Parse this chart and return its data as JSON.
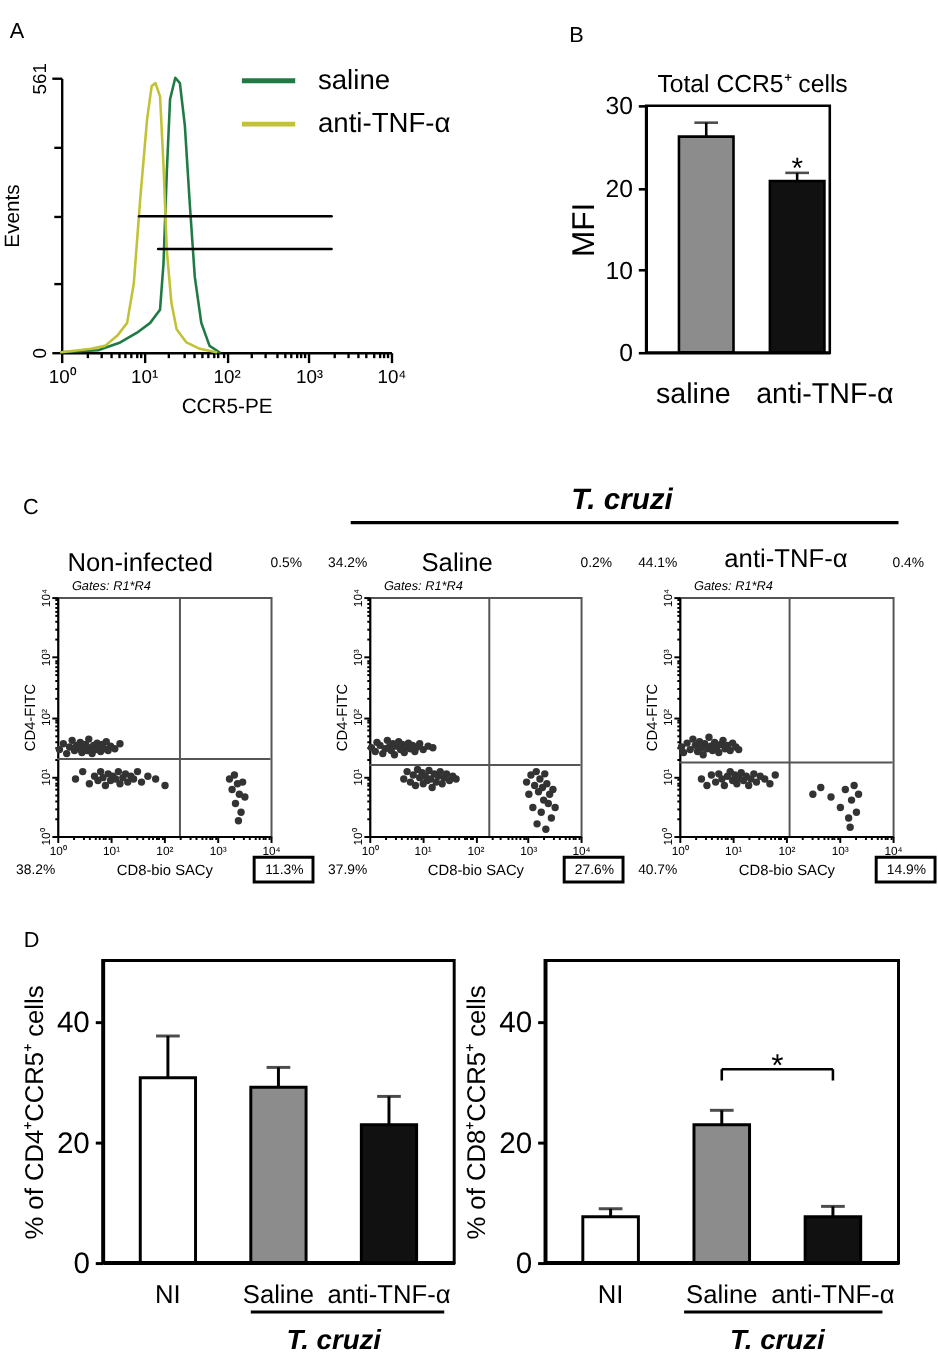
{
  "chart_data": [
    {
      "type": "line",
      "annotations": [
        "A"
      ],
      "xlabel": "CCR5-PE",
      "ylabel": "Events",
      "log": "x",
      "xlim": [
        1,
        10000
      ],
      "ylim": [
        0,
        561
      ],
      "xticks": [
        {
          "value": 1,
          "label": "10⁰"
        },
        {
          "value": 2,
          "label": null
        },
        {
          "value": 3,
          "label": null
        },
        {
          "value": 4,
          "label": null
        },
        {
          "value": 5,
          "label": null
        },
        {
          "value": 6,
          "label": null
        },
        {
          "value": 7,
          "label": null
        },
        {
          "value": 8,
          "label": null
        },
        {
          "value": 9,
          "label": null
        },
        {
          "value": 10,
          "label": "10¹"
        },
        {
          "value": 20,
          "label": null
        },
        {
          "value": 30,
          "label": null
        },
        {
          "value": 40,
          "label": null
        },
        {
          "value": 50,
          "label": null
        },
        {
          "value": 60,
          "label": null
        },
        {
          "value": 70,
          "label": null
        },
        {
          "value": 80,
          "label": null
        },
        {
          "value": 90,
          "label": null
        },
        {
          "value": 100,
          "label": "10²"
        },
        {
          "value": 200,
          "label": null
        },
        {
          "value": 300,
          "label": null
        },
        {
          "value": 400,
          "label": null
        },
        {
          "value": 500,
          "label": null
        },
        {
          "value": 600,
          "label": null
        },
        {
          "value": 700,
          "label": null
        },
        {
          "value": 800,
          "label": null
        },
        {
          "value": 900,
          "label": null
        },
        {
          "value": 1000,
          "label": "10³"
        },
        {
          "value": 2000,
          "label": null
        },
        {
          "value": 3000,
          "label": null
        },
        {
          "value": 4000,
          "label": null
        },
        {
          "value": 5000,
          "label": null
        },
        {
          "value": 6000,
          "label": null
        },
        {
          "value": 7000,
          "label": null
        },
        {
          "value": 8000,
          "label": null
        },
        {
          "value": 9000,
          "label": null
        },
        {
          "value": 10000,
          "label": "10⁴"
        }
      ],
      "yticks": [
        0,
        {
          "value": 140,
          "label": null
        },
        {
          "value": 280,
          "label": null
        },
        {
          "value": 420,
          "label": null
        },
        561
      ],
      "legend": "top right",
      "series": [
        {
          "name": "saline",
          "color": "#1f7a44",
          "x": [
            1,
            2.8,
            5.2,
            8.3,
            12,
            15.8,
            17.4,
            19.1,
            20.9,
            24.2,
            27.5,
            31.6,
            36.3,
            41.7,
            50,
            63,
            83
          ],
          "values": [
            0,
            4,
            20,
            40,
            60,
            87,
            181,
            369,
            517,
            561,
            550,
            463,
            302,
            154,
            60,
            13,
            0
          ]
        },
        {
          "name": "anti-TNF-α",
          "color": "#c2c236",
          "x": [
            1,
            2.3,
            3.4,
            4.8,
            6.3,
            7.6,
            9.1,
            11,
            12.5,
            13.9,
            15.8,
            17.4,
            19.1,
            21.7,
            25.1,
            33,
            48,
            76
          ],
          "values": [
            0,
            7,
            13,
            34,
            60,
            141,
            315,
            476,
            544,
            550,
            523,
            382,
            208,
            101,
            47,
            20,
            7,
            0
          ]
        },
        {
          "color": "#000000",
          "x": [
            8.8,
            1900
          ],
          "values": [
            278,
            278
          ]
        },
        {
          "color": "#000000",
          "x": [
            15,
            1900
          ],
          "values": [
            211,
            211
          ]
        }
      ]
    },
    {
      "type": "bar",
      "title": "Total CCR5⁺ cells",
      "annotations": [
        "B",
        "*"
      ],
      "ylabel": "MFI",
      "categories": [
        "saline",
        "anti-TNF-α"
      ],
      "values": [
        26.2,
        20.8
      ],
      "colors": [
        "#8c8c8c",
        "#111111"
      ],
      "errors": [
        [
          26.2,
          27.9
        ],
        [
          20.8,
          21.8
        ]
      ],
      "ylim": [
        0,
        30
      ],
      "yticks": [
        0,
        10,
        20,
        30
      ]
    },
    {
      "type": "scatter",
      "title": "Non-infected",
      "annotations": [
        "C",
        "Gates: R1*R4",
        "0.5%",
        "38.2%",
        "11.3%"
      ],
      "xlabel": "CD8-bio SACy",
      "ylabel": "CD4-FITC",
      "log": "xy",
      "xlim": [
        1,
        10000
      ],
      "ylim": [
        1,
        10000
      ],
      "xticks": [
        {
          "value": 1,
          "label": "10⁰"
        },
        {
          "value": 2,
          "label": null
        },
        {
          "value": 3,
          "label": null
        },
        {
          "value": 4,
          "label": null
        },
        {
          "value": 5,
          "label": null
        },
        {
          "value": 6,
          "label": null
        },
        {
          "value": 7,
          "label": null
        },
        {
          "value": 8,
          "label": null
        },
        {
          "value": 9,
          "label": null
        },
        {
          "value": 10,
          "label": "10¹"
        },
        {
          "value": 20,
          "label": null
        },
        {
          "value": 30,
          "label": null
        },
        {
          "value": 40,
          "label": null
        },
        {
          "value": 50,
          "label": null
        },
        {
          "value": 60,
          "label": null
        },
        {
          "value": 70,
          "label": null
        },
        {
          "value": 80,
          "label": null
        },
        {
          "value": 90,
          "label": null
        },
        {
          "value": 100,
          "label": "10²"
        },
        {
          "value": 200,
          "label": null
        },
        {
          "value": 300,
          "label": null
        },
        {
          "value": 400,
          "label": null
        },
        {
          "value": 500,
          "label": null
        },
        {
          "value": 600,
          "label": null
        },
        {
          "value": 700,
          "label": null
        },
        {
          "value": 800,
          "label": null
        },
        {
          "value": 900,
          "label": null
        },
        {
          "value": 1000,
          "label": "10³"
        },
        {
          "value": 2000,
          "label": null
        },
        {
          "value": 3000,
          "label": null
        },
        {
          "value": 4000,
          "label": null
        },
        {
          "value": 5000,
          "label": null
        },
        {
          "value": 6000,
          "label": null
        },
        {
          "value": 7000,
          "label": null
        },
        {
          "value": 8000,
          "label": null
        },
        {
          "value": 9000,
          "label": null
        },
        {
          "value": 10000,
          "label": "10⁴"
        }
      ],
      "yticks": [
        {
          "value": 1,
          "label": "10⁰"
        },
        {
          "value": 2,
          "label": null
        },
        {
          "value": 3,
          "label": null
        },
        {
          "value": 4,
          "label": null
        },
        {
          "value": 5,
          "label": null
        },
        {
          "value": 6,
          "label": null
        },
        {
          "value": 7,
          "label": null
        },
        {
          "value": 8,
          "label": null
        },
        {
          "value": 9,
          "label": null
        },
        {
          "value": 10,
          "label": "10¹"
        },
        {
          "value": 20,
          "label": null
        },
        {
          "value": 30,
          "label": null
        },
        {
          "value": 40,
          "label": null
        },
        {
          "value": 50,
          "label": null
        },
        {
          "value": 60,
          "label": null
        },
        {
          "value": 70,
          "label": null
        },
        {
          "value": 80,
          "label": null
        },
        {
          "value": 90,
          "label": null
        },
        {
          "value": 100,
          "label": "10²"
        },
        {
          "value": 200,
          "label": null
        },
        {
          "value": 300,
          "label": null
        },
        {
          "value": 400,
          "label": null
        },
        {
          "value": 500,
          "label": null
        },
        {
          "value": 600,
          "label": null
        },
        {
          "value": 700,
          "label": null
        },
        {
          "value": 800,
          "label": null
        },
        {
          "value": 900,
          "label": null
        },
        {
          "value": 1000,
          "label": "10³"
        },
        {
          "value": 2000,
          "label": null
        },
        {
          "value": 3000,
          "label": null
        },
        {
          "value": 4000,
          "label": null
        },
        {
          "value": 5000,
          "label": null
        },
        {
          "value": 6000,
          "label": null
        },
        {
          "value": 7000,
          "label": null
        },
        {
          "value": 8000,
          "label": null
        },
        {
          "value": 9000,
          "label": null
        },
        {
          "value": 10000,
          "label": "10⁴"
        }
      ],
      "ref_lines": [
        {
          "axis": "x",
          "value": 200,
          "color": "#555555"
        },
        {
          "axis": "y",
          "value": 19.5,
          "color": "#555555"
        }
      ],
      "marker": "circle",
      "series": [
        {
          "color": "#333333",
          "x": [
            1.1,
            1.3,
            1.5,
            1.7,
            1.9,
            2.1,
            2.3,
            2.5,
            2.7,
            2.9,
            3.1,
            3.4,
            3.6,
            3.9,
            4.2,
            4.5,
            4.8,
            5.2,
            5.6,
            6,
            6.5,
            7,
            7.6,
            8.3,
            9,
            10,
            12,
            15,
            2.2,
            3,
            4,
            5,
            5.8,
            6.5,
            7.2,
            8,
            9,
            10,
            11,
            12.5,
            14,
            15,
            17,
            19,
            21,
            24,
            27,
            32,
            38,
            50,
            70,
            105,
            1700,
            1900,
            2100,
            2200,
            2400,
            2600,
            2800,
            3000,
            3300,
            2500
          ],
          "values": [
            28,
            35,
            24,
            31,
            40,
            27,
            33,
            29,
            37,
            25,
            31,
            34,
            27,
            42,
            30,
            24,
            33,
            28,
            36,
            31,
            26,
            34,
            29,
            38,
            27,
            32,
            29,
            35,
            9,
            12,
            7.5,
            10,
            8.5,
            12,
            9.5,
            7,
            11,
            8.5,
            10,
            9,
            12,
            7.5,
            9.5,
            11,
            8,
            10,
            9,
            12,
            8,
            10,
            9,
            7,
            9,
            6,
            10.5,
            3.5,
            7.5,
            5,
            2.5,
            8,
            4.5,
            1.8
          ]
        }
      ]
    },
    {
      "type": "scatter",
      "title": "Saline",
      "annotations": [
        "T. cruzi",
        "Gates: R1*R4",
        "34.2%",
        "0.2%",
        "37.9%",
        "27.6%"
      ],
      "xlabel": "CD8-bio SACy",
      "ylabel": "CD4-FITC",
      "log": "xy",
      "xlim": [
        1,
        10000
      ],
      "ylim": [
        1,
        10000
      ],
      "xticks": [
        {
          "value": 1,
          "label": "10⁰"
        },
        {
          "value": 2,
          "label": null
        },
        {
          "value": 3,
          "label": null
        },
        {
          "value": 4,
          "label": null
        },
        {
          "value": 5,
          "label": null
        },
        {
          "value": 6,
          "label": null
        },
        {
          "value": 7,
          "label": null
        },
        {
          "value": 8,
          "label": null
        },
        {
          "value": 9,
          "label": null
        },
        {
          "value": 10,
          "label": "10¹"
        },
        {
          "value": 20,
          "label": null
        },
        {
          "value": 30,
          "label": null
        },
        {
          "value": 40,
          "label": null
        },
        {
          "value": 50,
          "label": null
        },
        {
          "value": 60,
          "label": null
        },
        {
          "value": 70,
          "label": null
        },
        {
          "value": 80,
          "label": null
        },
        {
          "value": 90,
          "label": null
        },
        {
          "value": 100,
          "label": "10²"
        },
        {
          "value": 200,
          "label": null
        },
        {
          "value": 300,
          "label": null
        },
        {
          "value": 400,
          "label": null
        },
        {
          "value": 500,
          "label": null
        },
        {
          "value": 600,
          "label": null
        },
        {
          "value": 700,
          "label": null
        },
        {
          "value": 800,
          "label": null
        },
        {
          "value": 900,
          "label": null
        },
        {
          "value": 1000,
          "label": "10³"
        },
        {
          "value": 2000,
          "label": null
        },
        {
          "value": 3000,
          "label": null
        },
        {
          "value": 4000,
          "label": null
        },
        {
          "value": 5000,
          "label": null
        },
        {
          "value": 6000,
          "label": null
        },
        {
          "value": 7000,
          "label": null
        },
        {
          "value": 8000,
          "label": null
        },
        {
          "value": 9000,
          "label": null
        },
        {
          "value": 10000,
          "label": "10⁴"
        }
      ],
      "yticks": [
        {
          "value": 1,
          "label": "10⁰"
        },
        {
          "value": 2,
          "label": null
        },
        {
          "value": 3,
          "label": null
        },
        {
          "value": 4,
          "label": null
        },
        {
          "value": 5,
          "label": null
        },
        {
          "value": 6,
          "label": null
        },
        {
          "value": 7,
          "label": null
        },
        {
          "value": 8,
          "label": null
        },
        {
          "value": 9,
          "label": null
        },
        {
          "value": 10,
          "label": "10¹"
        },
        {
          "value": 20,
          "label": null
        },
        {
          "value": 30,
          "label": null
        },
        {
          "value": 40,
          "label": null
        },
        {
          "value": 50,
          "label": null
        },
        {
          "value": 60,
          "label": null
        },
        {
          "value": 70,
          "label": null
        },
        {
          "value": 80,
          "label": null
        },
        {
          "value": 90,
          "label": null
        },
        {
          "value": 100,
          "label": "10²"
        },
        {
          "value": 200,
          "label": null
        },
        {
          "value": 300,
          "label": null
        },
        {
          "value": 400,
          "label": null
        },
        {
          "value": 500,
          "label": null
        },
        {
          "value": 600,
          "label": null
        },
        {
          "value": 700,
          "label": null
        },
        {
          "value": 800,
          "label": null
        },
        {
          "value": 900,
          "label": null
        },
        {
          "value": 1000,
          "label": "10³"
        },
        {
          "value": 2000,
          "label": null
        },
        {
          "value": 3000,
          "label": null
        },
        {
          "value": 4000,
          "label": null
        },
        {
          "value": 5000,
          "label": null
        },
        {
          "value": 6000,
          "label": null
        },
        {
          "value": 7000,
          "label": null
        },
        {
          "value": 8000,
          "label": null
        },
        {
          "value": 9000,
          "label": null
        },
        {
          "value": 10000,
          "label": "10⁴"
        }
      ],
      "ref_lines": [
        {
          "axis": "x",
          "value": 187,
          "color": "#555555"
        },
        {
          "axis": "y",
          "value": 15.5,
          "color": "#555555"
        }
      ],
      "marker": "circle",
      "series": [
        {
          "color": "#333333",
          "x": [
            1.1,
            1.3,
            1.4,
            1.6,
            1.8,
            2,
            2.2,
            2.4,
            2.6,
            2.8,
            3,
            3.3,
            3.6,
            3.9,
            4.2,
            4.6,
            5,
            5.5,
            6,
            6.6,
            7.3,
            8,
            9,
            10.5,
            13,
            16,
            4.5,
            5.2,
            6,
            6.8,
            7.5,
            8.2,
            9,
            10,
            10.5,
            11.5,
            12.5,
            13.5,
            14.5,
            15.5,
            17,
            18.5,
            20,
            22,
            24,
            26,
            29,
            33,
            38,
            44,
            950,
            1050,
            1150,
            1250,
            1350,
            1450,
            1500,
            1600,
            1700,
            1800,
            1900,
            2000,
            2100,
            2200,
            2300,
            2450,
            2600,
            2800,
            3000,
            3300
          ],
          "values": [
            30,
            26,
            37,
            33,
            24,
            29,
            40,
            31,
            27,
            35,
            23,
            32,
            38,
            28,
            34,
            25,
            31,
            36,
            29,
            33,
            26,
            31,
            35,
            28,
            32,
            30,
            9,
            12,
            8,
            10.5,
            7,
            13,
            9.5,
            11.5,
            7.5,
            10,
            8.5,
            12.5,
            9,
            6.5,
            11,
            8,
            10,
            12,
            7.5,
            9.5,
            11,
            8.5,
            10,
            9,
            8,
            5,
            10.5,
            3,
            7,
            12,
            1.6,
            5.5,
            9,
            2.5,
            6.5,
            4,
            11,
            1.3,
            7.5,
            3.5,
            5,
            2,
            6,
            3
          ]
        }
      ]
    },
    {
      "type": "scatter",
      "title": "anti-TNF-α",
      "annotations": [
        "Gates: R1*R4",
        "44.1%",
        "0.4%",
        "40.7%",
        "14.9%"
      ],
      "xlabel": "CD8-bio SACy",
      "ylabel": "CD4-FITC",
      "log": "xy",
      "xlim": [
        1,
        10000
      ],
      "ylim": [
        1,
        10000
      ],
      "xticks": [
        {
          "value": 1,
          "label": "10⁰"
        },
        {
          "value": 2,
          "label": null
        },
        {
          "value": 3,
          "label": null
        },
        {
          "value": 4,
          "label": null
        },
        {
          "value": 5,
          "label": null
        },
        {
          "value": 6,
          "label": null
        },
        {
          "value": 7,
          "label": null
        },
        {
          "value": 8,
          "label": null
        },
        {
          "value": 9,
          "label": null
        },
        {
          "value": 10,
          "label": "10¹"
        },
        {
          "value": 20,
          "label": null
        },
        {
          "value": 30,
          "label": null
        },
        {
          "value": 40,
          "label": null
        },
        {
          "value": 50,
          "label": null
        },
        {
          "value": 60,
          "label": null
        },
        {
          "value": 70,
          "label": null
        },
        {
          "value": 80,
          "label": null
        },
        {
          "value": 90,
          "label": null
        },
        {
          "value": 100,
          "label": "10²"
        },
        {
          "value": 200,
          "label": null
        },
        {
          "value": 300,
          "label": null
        },
        {
          "value": 400,
          "label": null
        },
        {
          "value": 500,
          "label": null
        },
        {
          "value": 600,
          "label": null
        },
        {
          "value": 700,
          "label": null
        },
        {
          "value": 800,
          "label": null
        },
        {
          "value": 900,
          "label": null
        },
        {
          "value": 1000,
          "label": "10³"
        },
        {
          "value": 2000,
          "label": null
        },
        {
          "value": 3000,
          "label": null
        },
        {
          "value": 4000,
          "label": null
        },
        {
          "value": 5000,
          "label": null
        },
        {
          "value": 6000,
          "label": null
        },
        {
          "value": 7000,
          "label": null
        },
        {
          "value": 8000,
          "label": null
        },
        {
          "value": 9000,
          "label": null
        },
        {
          "value": 10000,
          "label": "10⁴"
        }
      ],
      "yticks": [
        {
          "value": 1,
          "label": "10⁰"
        },
        {
          "value": 2,
          "label": null
        },
        {
          "value": 3,
          "label": null
        },
        {
          "value": 4,
          "label": null
        },
        {
          "value": 5,
          "label": null
        },
        {
          "value": 6,
          "label": null
        },
        {
          "value": 7,
          "label": null
        },
        {
          "value": 8,
          "label": null
        },
        {
          "value": 9,
          "label": null
        },
        {
          "value": 10,
          "label": "10¹"
        },
        {
          "value": 20,
          "label": null
        },
        {
          "value": 30,
          "label": null
        },
        {
          "value": 40,
          "label": null
        },
        {
          "value": 50,
          "label": null
        },
        {
          "value": 60,
          "label": null
        },
        {
          "value": 70,
          "label": null
        },
        {
          "value": 80,
          "label": null
        },
        {
          "value": 90,
          "label": null
        },
        {
          "value": 100,
          "label": "10²"
        },
        {
          "value": 200,
          "label": null
        },
        {
          "value": 300,
          "label": null
        },
        {
          "value": 400,
          "label": null
        },
        {
          "value": 500,
          "label": null
        },
        {
          "value": 600,
          "label": null
        },
        {
          "value": 700,
          "label": null
        },
        {
          "value": 800,
          "label": null
        },
        {
          "value": 900,
          "label": null
        },
        {
          "value": 1000,
          "label": "10³"
        },
        {
          "value": 2000,
          "label": null
        },
        {
          "value": 3000,
          "label": null
        },
        {
          "value": 4000,
          "label": null
        },
        {
          "value": 5000,
          "label": null
        },
        {
          "value": 6000,
          "label": null
        },
        {
          "value": 7000,
          "label": null
        },
        {
          "value": 8000,
          "label": null
        },
        {
          "value": 9000,
          "label": null
        },
        {
          "value": 10000,
          "label": "10⁴"
        }
      ],
      "ref_lines": [
        {
          "axis": "x",
          "value": 117,
          "color": "#555555"
        },
        {
          "axis": "y",
          "value": 17,
          "color": "#555555"
        }
      ],
      "marker": "circle",
      "series": [
        {
          "color": "#333333",
          "x": [
            1.1,
            1.2,
            1.4,
            1.6,
            1.8,
            2,
            2.2,
            2.4,
            2.6,
            2.8,
            3,
            3.3,
            3.6,
            3.9,
            4.2,
            4.6,
            5,
            5.5,
            6,
            6.6,
            7.2,
            8,
            9,
            10,
            11.5,
            13,
            2.6,
            3.3,
            4,
            4.8,
            5.5,
            6.3,
            7,
            8,
            9,
            10,
            11,
            12,
            13,
            14.5,
            16,
            18,
            20,
            22,
            25,
            28,
            33,
            40,
            50,
            63,
            320,
            450,
            700,
            1050,
            1300,
            1500,
            1700,
            1900,
            2100,
            2300,
            1600
          ],
          "values": [
            31,
            25,
            36,
            28,
            42,
            33,
            26,
            38,
            30,
            23,
            35,
            29,
            45,
            32,
            27,
            37,
            30,
            25,
            34,
            40,
            29,
            33,
            27,
            36,
            31,
            28,
            9,
            7,
            10.5,
            8,
            11,
            9,
            7,
            10,
            12,
            8.5,
            10.5,
            7.5,
            9.5,
            11.5,
            8.5,
            10,
            7,
            9,
            11,
            8,
            10,
            9,
            7.5,
            10.5,
            5,
            6.5,
            4.5,
            3,
            6,
            2,
            4,
            7,
            2.5,
            5,
            1.4
          ]
        }
      ]
    },
    {
      "type": "bar",
      "annotations": [
        "D",
        "T. cruzi"
      ],
      "ylabel": "% of CD4⁺CCR5⁺ cells",
      "categories": [
        "NI",
        "Saline",
        "anti-TNF-α"
      ],
      "values": [
        30.6,
        29.0,
        22.8
      ],
      "colors": [
        "#ffffff",
        "#8c8c8c",
        "#111111"
      ],
      "errors": [
        [
          30.6,
          37.5
        ],
        [
          29.0,
          32.3
        ],
        [
          22.8,
          27.5
        ]
      ],
      "ylim": [
        0,
        50
      ],
      "yticks": [
        0,
        20,
        40
      ]
    },
    {
      "type": "bar",
      "annotations": [
        "T. cruzi",
        "*"
      ],
      "ylabel": "% of CD8⁺CCR5⁺ cells",
      "categories": [
        "NI",
        "Saline",
        "anti-TNF-α"
      ],
      "values": [
        7.6,
        22.8,
        7.6
      ],
      "colors": [
        "#ffffff",
        "#8c8c8c",
        "#111111"
      ],
      "errors": [
        [
          7.6,
          8.9
        ],
        [
          22.8,
          25.2
        ],
        [
          7.6,
          9.3
        ]
      ],
      "ylim": [
        0,
        50
      ],
      "yticks": [
        0,
        20,
        40
      ]
    }
  ]
}
